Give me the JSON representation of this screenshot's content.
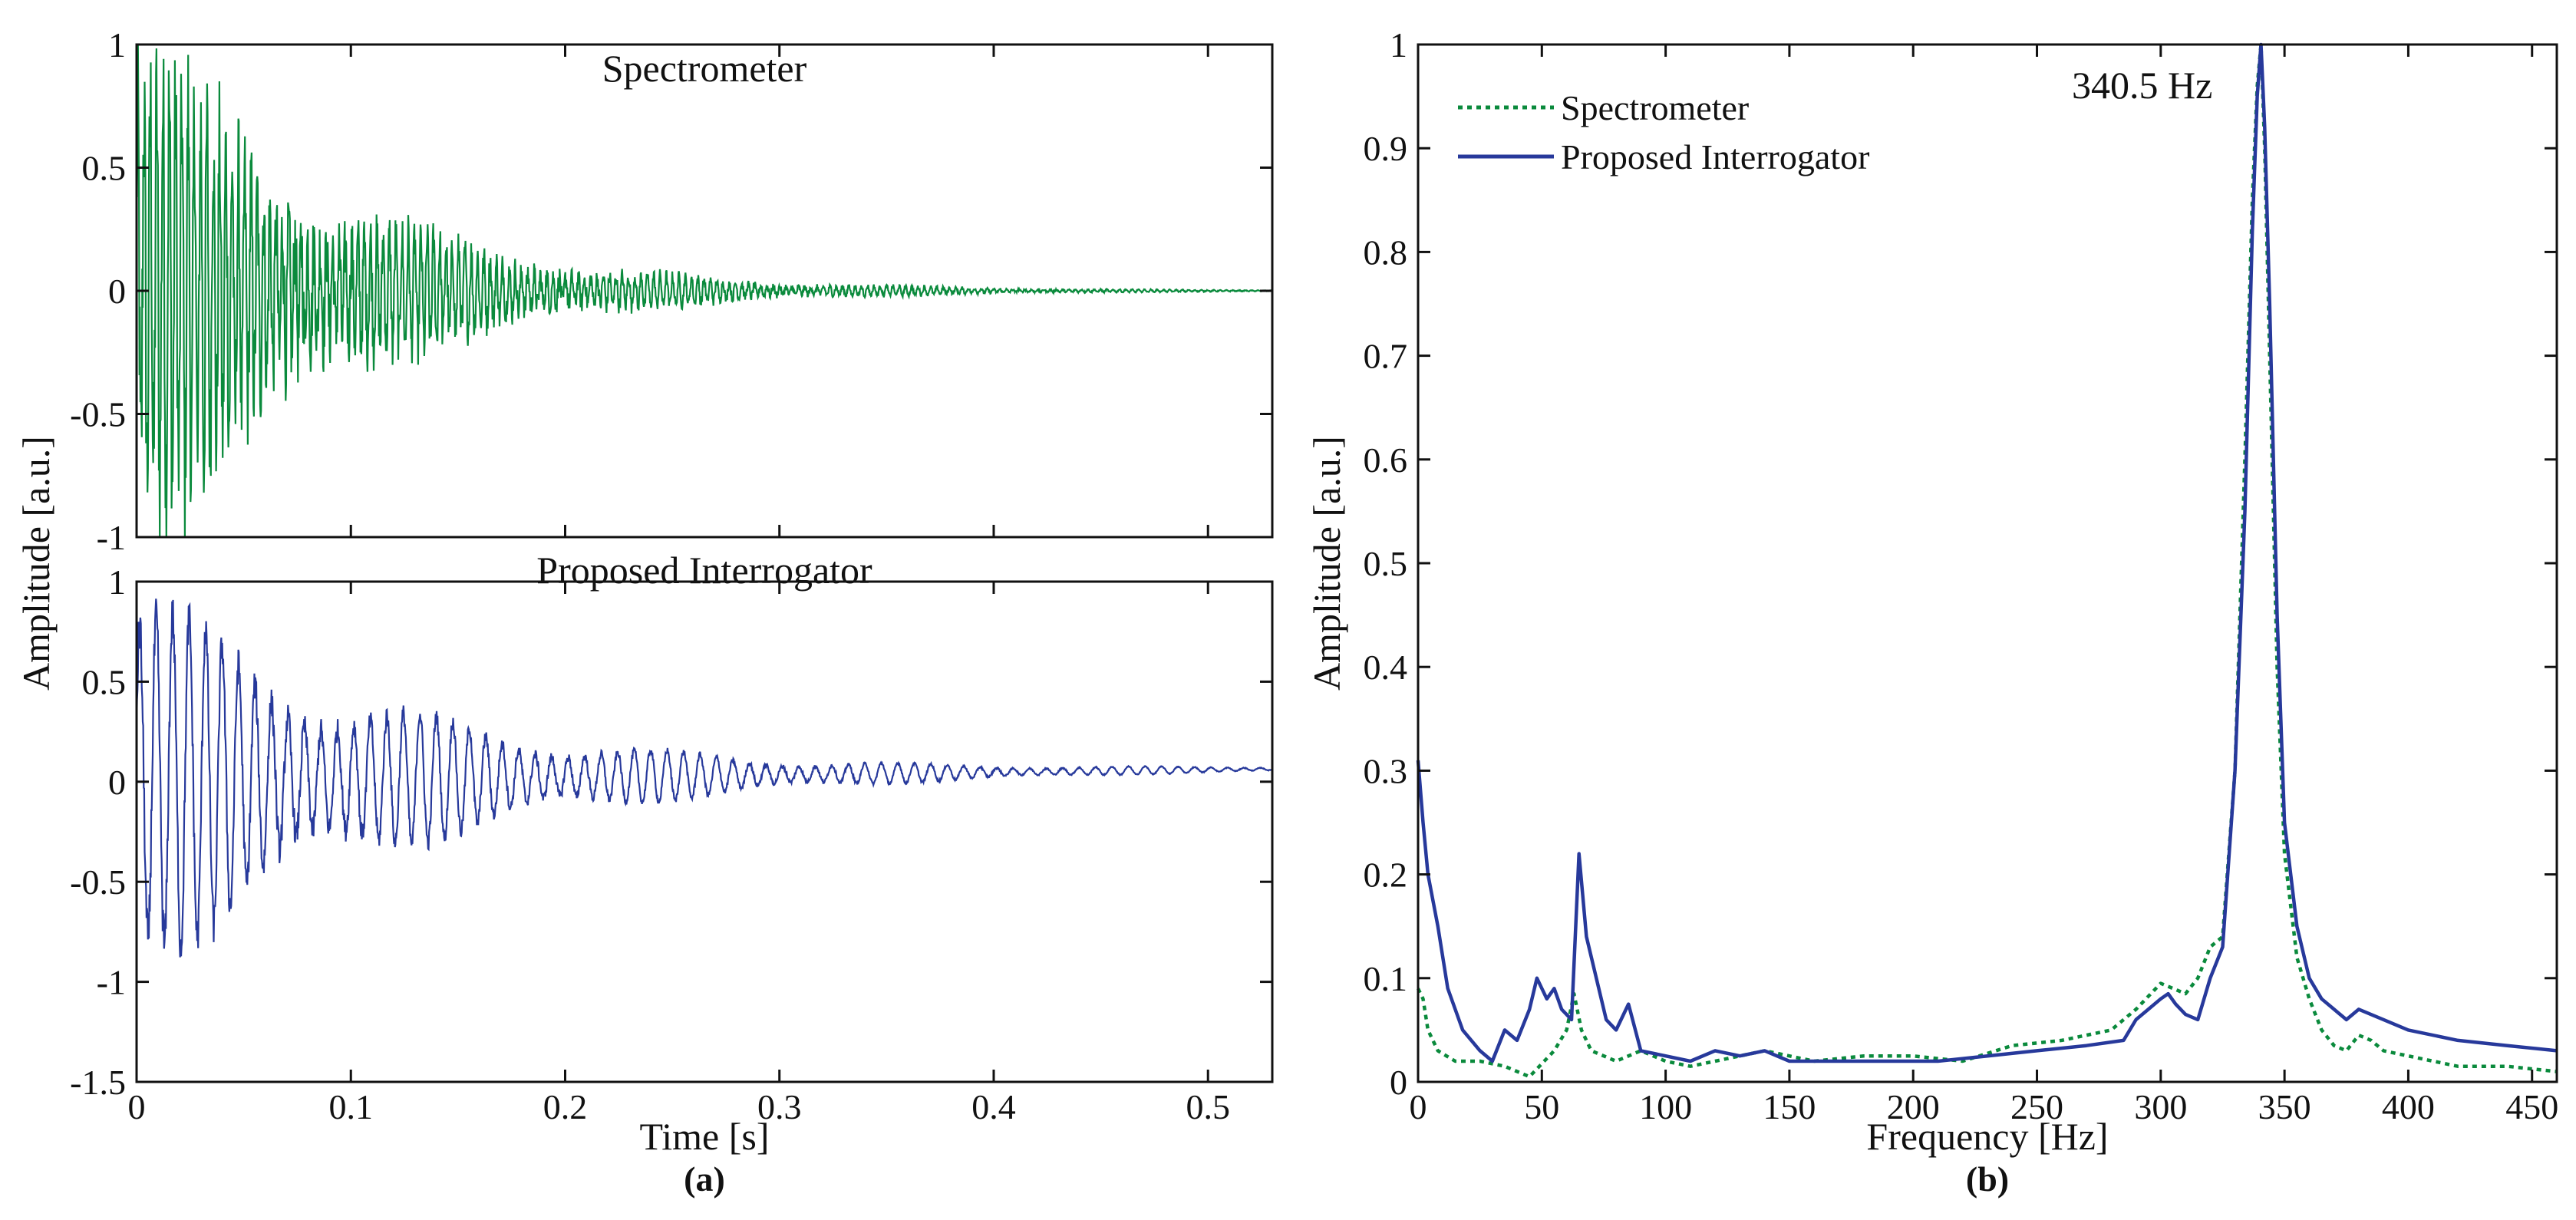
{
  "colors": {
    "spectrometer": "#0a8a3c",
    "interrogator": "#27399b",
    "axis": "#111111"
  },
  "chart_data": [
    {
      "type": "line",
      "title": "Spectrometer",
      "xlabel": "",
      "ylabel": "",
      "xlim": [
        0,
        0.53
      ],
      "ylim": [
        -1,
        1
      ],
      "x_ticks": [
        0,
        0.1,
        0.2,
        0.3,
        0.4,
        0.5
      ],
      "y_ticks": [
        -1,
        -0.5,
        0,
        0.5,
        1
      ],
      "y_tick_labels": [
        "-1",
        "-0.5",
        "0",
        "0.5",
        "1"
      ],
      "grid": false,
      "series": [
        {
          "name": "Spectrometer",
          "color": "#0a8a3c",
          "description": "Decaying oscillation, initial amplitude ~0.95, decays to ~0 by 0.5 s",
          "initial_amplitude": 0.95,
          "decay_time_s": 0.09
        }
      ]
    },
    {
      "type": "line",
      "title": "Proposed Interrogator",
      "xlabel": "Time [s]",
      "ylabel": "",
      "xlim": [
        0,
        0.53
      ],
      "ylim": [
        -1.5,
        1
      ],
      "x_ticks": [
        0,
        0.1,
        0.2,
        0.3,
        0.4,
        0.5
      ],
      "x_tick_labels": [
        "0",
        "0.1",
        "0.2",
        "0.3",
        "0.4",
        "0.5"
      ],
      "y_ticks": [
        -1.5,
        -1,
        -0.5,
        0,
        0.5,
        1
      ],
      "y_tick_labels": [
        "-1.5",
        "-1",
        "-0.5",
        "0",
        "0.5",
        "1"
      ],
      "grid": false,
      "series": [
        {
          "name": "Proposed Interrogator",
          "color": "#27399b",
          "description": "Decaying oscillation, initial amplitude ~1.0, decays to ~0.04 with slight positive drift",
          "initial_amplitude": 1.0,
          "decay_time_s": 0.12
        }
      ]
    },
    {
      "type": "line",
      "title": "",
      "xlabel": "Frequency [Hz]",
      "ylabel": "Amplitude [a.u.]",
      "xlim": [
        0,
        460
      ],
      "ylim": [
        0,
        1
      ],
      "x_ticks": [
        0,
        50,
        100,
        150,
        200,
        250,
        300,
        350,
        400,
        450
      ],
      "x_tick_labels": [
        "0",
        "50",
        "100",
        "150",
        "200",
        "250",
        "300",
        "350",
        "400",
        "450"
      ],
      "y_ticks": [
        0,
        0.1,
        0.2,
        0.3,
        0.4,
        0.5,
        0.6,
        0.7,
        0.8,
        0.9,
        1
      ],
      "y_tick_labels": [
        "0",
        "0.1",
        "0.2",
        "0.3",
        "0.4",
        "0.5",
        "0.6",
        "0.7",
        "0.8",
        "0.9",
        "1"
      ],
      "grid": false,
      "legend": "top-left",
      "annotation": "340.5 Hz",
      "series": [
        {
          "name": "Spectrometer",
          "color": "#0a8a3c",
          "style": "dotted",
          "x": [
            0,
            2,
            4,
            8,
            15,
            25,
            35,
            45,
            55,
            60,
            63,
            66,
            70,
            80,
            90,
            100,
            110,
            120,
            140,
            160,
            180,
            200,
            220,
            240,
            260,
            280,
            290,
            300,
            305,
            310,
            315,
            320,
            325,
            330,
            334,
            337,
            339,
            340.5,
            342,
            344,
            347,
            350,
            355,
            360,
            365,
            370,
            375,
            380,
            385,
            390,
            400,
            420,
            440,
            460
          ],
          "y": [
            0.09,
            0.08,
            0.05,
            0.03,
            0.02,
            0.02,
            0.015,
            0.005,
            0.03,
            0.05,
            0.085,
            0.05,
            0.03,
            0.02,
            0.03,
            0.02,
            0.015,
            0.02,
            0.03,
            0.02,
            0.025,
            0.025,
            0.02,
            0.035,
            0.04,
            0.05,
            0.07,
            0.095,
            0.09,
            0.085,
            0.1,
            0.13,
            0.14,
            0.3,
            0.6,
            0.85,
            0.96,
            1.0,
            0.9,
            0.7,
            0.4,
            0.22,
            0.12,
            0.08,
            0.05,
            0.035,
            0.03,
            0.045,
            0.04,
            0.03,
            0.025,
            0.015,
            0.015,
            0.01
          ]
        },
        {
          "name": "Proposed Interrogator",
          "color": "#27399b",
          "style": "solid",
          "x": [
            0,
            2,
            4,
            8,
            12,
            18,
            25,
            30,
            35,
            40,
            45,
            48,
            52,
            55,
            58,
            62,
            65,
            68,
            72,
            76,
            80,
            85,
            90,
            100,
            110,
            120,
            130,
            140,
            150,
            170,
            190,
            210,
            230,
            250,
            270,
            285,
            290,
            295,
            300,
            303,
            306,
            310,
            315,
            320,
            325,
            330,
            334,
            337,
            339,
            340.5,
            342,
            344,
            347,
            350,
            355,
            360,
            365,
            370,
            375,
            380,
            390,
            400,
            420,
            440,
            460
          ],
          "y": [
            0.31,
            0.25,
            0.2,
            0.15,
            0.09,
            0.05,
            0.03,
            0.02,
            0.05,
            0.04,
            0.07,
            0.1,
            0.08,
            0.09,
            0.07,
            0.06,
            0.22,
            0.14,
            0.1,
            0.06,
            0.05,
            0.075,
            0.03,
            0.025,
            0.02,
            0.03,
            0.025,
            0.03,
            0.02,
            0.02,
            0.02,
            0.02,
            0.025,
            0.03,
            0.035,
            0.04,
            0.06,
            0.07,
            0.08,
            0.085,
            0.075,
            0.065,
            0.06,
            0.1,
            0.13,
            0.3,
            0.55,
            0.82,
            0.95,
            1.0,
            0.92,
            0.75,
            0.45,
            0.25,
            0.15,
            0.1,
            0.08,
            0.07,
            0.06,
            0.07,
            0.06,
            0.05,
            0.04,
            0.035,
            0.03
          ]
        }
      ]
    }
  ],
  "figure": {
    "shared_ylabel_left": "Amplitude [a.u.]",
    "panel_a_label": "(a)",
    "panel_b_label": "(b)"
  }
}
